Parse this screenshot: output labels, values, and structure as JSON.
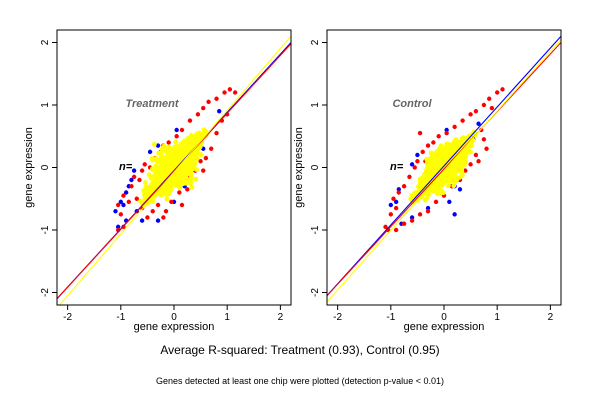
{
  "chart_data": [
    {
      "type": "scatter",
      "title": "Treatment",
      "xlabel": "gene expression",
      "ylabel": "gene expression",
      "xlim": [
        -2.2,
        2.2
      ],
      "ylim": [
        -2.2,
        2.2
      ],
      "xticks": [
        "-2",
        "-1",
        "0",
        "1",
        "2"
      ],
      "yticks": [
        "-2",
        "-1",
        "0",
        "1",
        "2"
      ],
      "annotation": "n=",
      "grid": false,
      "legend": "none",
      "cloud": {
        "center": [
          0.0,
          0.0
        ],
        "major_extent": 1.65,
        "minor_extent": 0.3,
        "major_direction_deg": 45,
        "lower_end": [
          -1.1,
          -1.1
        ],
        "upper_end": [
          1.25,
          1.25
        ]
      },
      "series": [
        {
          "color": "#0000ff",
          "points": [
            [
              -1.1,
              -0.7
            ],
            [
              -1.0,
              -0.55
            ],
            [
              -0.9,
              -0.4
            ],
            [
              -0.85,
              -0.3
            ],
            [
              -0.8,
              -0.2
            ],
            [
              -0.75,
              -0.05
            ],
            [
              -0.95,
              -0.6
            ],
            [
              -1.05,
              -0.95
            ],
            [
              -0.6,
              -0.85
            ],
            [
              -0.3,
              -0.85
            ],
            [
              0.0,
              -0.55
            ],
            [
              0.2,
              -0.3
            ],
            [
              0.3,
              -0.1
            ],
            [
              0.55,
              0.3
            ],
            [
              0.85,
              0.9
            ],
            [
              -0.45,
              0.25
            ],
            [
              -0.3,
              0.35
            ],
            [
              0.05,
              0.6
            ],
            [
              -0.9,
              -0.85
            ],
            [
              -0.7,
              -0.7
            ]
          ]
        },
        {
          "color": "#ff0000",
          "points": [
            [
              -1.05,
              -0.6
            ],
            [
              -1.0,
              -0.75
            ],
            [
              -0.95,
              -0.45
            ],
            [
              -0.85,
              -0.55
            ],
            [
              -0.8,
              -0.3
            ],
            [
              -0.75,
              -0.15
            ],
            [
              -0.65,
              -0.2
            ],
            [
              -0.55,
              0.05
            ],
            [
              -0.6,
              -0.05
            ],
            [
              -0.45,
              0.0
            ],
            [
              -0.35,
              0.15
            ],
            [
              -0.25,
              0.25
            ],
            [
              -0.2,
              0.35
            ],
            [
              -0.1,
              0.4
            ],
            [
              0.05,
              0.5
            ],
            [
              0.15,
              0.6
            ],
            [
              0.3,
              0.75
            ],
            [
              0.45,
              0.85
            ],
            [
              0.55,
              0.95
            ],
            [
              0.65,
              1.05
            ],
            [
              0.8,
              1.1
            ],
            [
              0.95,
              1.2
            ],
            [
              1.05,
              1.25
            ],
            [
              1.15,
              1.2
            ],
            [
              0.3,
              -0.15
            ],
            [
              0.4,
              -0.05
            ],
            [
              0.5,
              0.1
            ],
            [
              0.6,
              0.15
            ],
            [
              0.7,
              0.3
            ],
            [
              0.55,
              -0.05
            ],
            [
              0.45,
              0.3
            ],
            [
              0.25,
              -0.35
            ],
            [
              0.1,
              -0.4
            ],
            [
              -0.05,
              -0.55
            ],
            [
              -0.15,
              -0.7
            ],
            [
              -0.3,
              -0.6
            ],
            [
              -0.4,
              -0.7
            ],
            [
              -0.5,
              -0.8
            ],
            [
              -0.6,
              -0.65
            ],
            [
              -0.7,
              -0.5
            ],
            [
              0.8,
              0.55
            ],
            [
              0.9,
              0.75
            ],
            [
              1.0,
              0.85
            ],
            [
              0.15,
              -0.6
            ],
            [
              -0.2,
              -0.8
            ],
            [
              -0.95,
              -0.95
            ],
            [
              -1.05,
              -1.0
            ],
            [
              0.6,
              0.55
            ]
          ]
        },
        {
          "color": "#ffff00",
          "density": "dense",
          "count": 1100
        }
      ],
      "lines": [
        {
          "color": "#0000ff",
          "x": [
            -2.2,
            2.2
          ],
          "y": [
            -2.1,
            2.0
          ]
        },
        {
          "color": "#ff0000",
          "x": [
            -2.2,
            2.2
          ],
          "y": [
            -2.1,
            1.98
          ]
        },
        {
          "color": "#ffff00",
          "x": [
            -2.2,
            2.2
          ],
          "y": [
            -2.25,
            2.1
          ]
        }
      ]
    },
    {
      "type": "scatter",
      "title": "Control",
      "xlabel": "gene expression",
      "ylabel": "gene expression",
      "xlim": [
        -2.2,
        2.2
      ],
      "ylim": [
        -2.2,
        2.2
      ],
      "xticks": [
        "-2",
        "-1",
        "0",
        "1",
        "2"
      ],
      "yticks": [
        "-2",
        "-1",
        "0",
        "1",
        "2"
      ],
      "annotation": "n=",
      "grid": false,
      "legend": "none",
      "cloud": {
        "center": [
          0.0,
          0.0
        ],
        "major_extent": 1.6,
        "minor_extent": 0.26,
        "major_direction_deg": 43,
        "lower_end": [
          -1.1,
          -1.1
        ],
        "upper_end": [
          1.25,
          1.25
        ]
      },
      "series": [
        {
          "color": "#0000ff",
          "points": [
            [
              -1.0,
              -0.6
            ],
            [
              -0.9,
              -0.55
            ],
            [
              -0.85,
              -0.35
            ],
            [
              -0.8,
              -0.9
            ],
            [
              -0.6,
              -0.8
            ],
            [
              -0.3,
              -0.65
            ],
            [
              0.1,
              -0.55
            ],
            [
              0.2,
              -0.3
            ],
            [
              0.2,
              -0.75
            ],
            [
              0.3,
              -0.35
            ],
            [
              0.55,
              0.45
            ],
            [
              -0.5,
              0.2
            ],
            [
              0.05,
              0.6
            ],
            [
              -0.6,
              0.05
            ],
            [
              0.65,
              0.7
            ]
          ]
        },
        {
          "color": "#ff0000",
          "points": [
            [
              -1.0,
              -0.75
            ],
            [
              -0.95,
              -0.5
            ],
            [
              -0.9,
              -0.65
            ],
            [
              -0.85,
              -0.4
            ],
            [
              -0.75,
              -0.3
            ],
            [
              -0.65,
              -0.15
            ],
            [
              -0.55,
              0.0
            ],
            [
              -0.5,
              0.1
            ],
            [
              -0.4,
              0.25
            ],
            [
              -0.45,
              0.55
            ],
            [
              -0.3,
              0.35
            ],
            [
              -0.2,
              0.4
            ],
            [
              -0.1,
              0.5
            ],
            [
              0.05,
              0.55
            ],
            [
              0.2,
              0.65
            ],
            [
              0.35,
              0.75
            ],
            [
              0.5,
              0.85
            ],
            [
              0.6,
              0.9
            ],
            [
              0.75,
              1.0
            ],
            [
              0.85,
              1.1
            ],
            [
              1.0,
              1.2
            ],
            [
              1.1,
              1.25
            ],
            [
              0.7,
              0.6
            ],
            [
              0.75,
              0.45
            ],
            [
              0.8,
              0.3
            ],
            [
              0.6,
              0.2
            ],
            [
              0.5,
              0.05
            ],
            [
              0.4,
              -0.05
            ],
            [
              0.3,
              -0.2
            ],
            [
              0.15,
              -0.3
            ],
            [
              0.0,
              -0.45
            ],
            [
              -0.15,
              -0.55
            ],
            [
              -0.3,
              -0.7
            ],
            [
              -0.45,
              -0.75
            ],
            [
              -0.6,
              -0.85
            ],
            [
              -0.75,
              -0.9
            ],
            [
              -0.9,
              -1.0
            ],
            [
              -1.05,
              -1.0
            ],
            [
              -1.1,
              -0.95
            ],
            [
              0.9,
              0.95
            ],
            [
              0.55,
              0.5
            ],
            [
              -0.35,
              0.1
            ],
            [
              0.65,
              0.1
            ]
          ]
        },
        {
          "color": "#ffff00",
          "density": "dense",
          "count": 1100
        }
      ],
      "lines": [
        {
          "color": "#0000ff",
          "x": [
            -2.2,
            2.2
          ],
          "y": [
            -2.05,
            2.1
          ]
        },
        {
          "color": "#ff0000",
          "x": [
            -2.2,
            2.2
          ],
          "y": [
            -2.05,
            2.0
          ]
        },
        {
          "color": "#ffff00",
          "x": [
            -2.2,
            2.2
          ],
          "y": [
            -2.15,
            2.05
          ]
        }
      ]
    }
  ],
  "caption": {
    "main": "Average R-squared: Treatment (0.93), Control (0.95)",
    "sub": "Genes detected at least one chip were plotted (detection p-value < 0.01)"
  }
}
